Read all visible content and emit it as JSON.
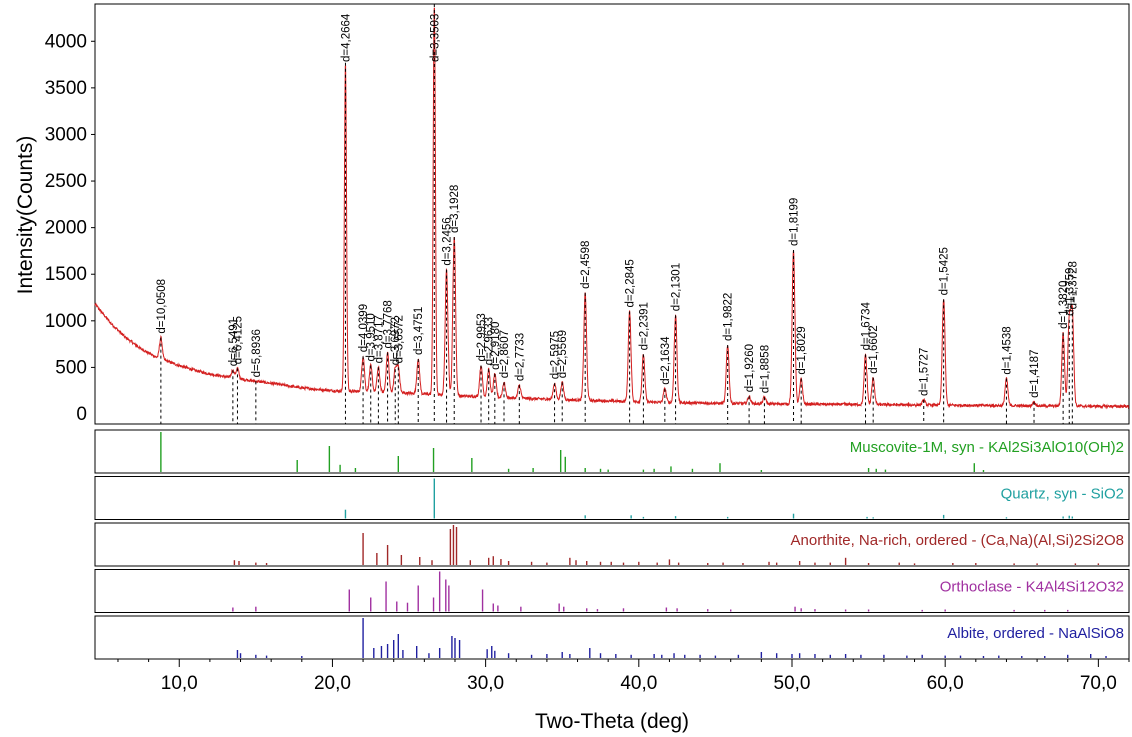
{
  "chart_data": {
    "type": "line",
    "xlabel": "Two-Theta (deg)",
    "ylabel": "Intensity(Counts)",
    "xlim": [
      4.5,
      72
    ],
    "ylim": [
      0,
      4400
    ],
    "x_ticks": [
      10,
      20,
      30,
      40,
      50,
      60,
      70
    ],
    "x_tick_labels": [
      "10,0",
      "20,0",
      "30,0",
      "40,0",
      "50,0",
      "60,0",
      "70,0"
    ],
    "y_ticks": [
      500,
      1000,
      1500,
      2000,
      2500,
      3000,
      3500,
      4000
    ],
    "y_tick_labels": [
      "500",
      "1000",
      "1500",
      "2000",
      "2500",
      "3000",
      "3500",
      "4000"
    ],
    "y_zero_label": "0",
    "pattern_color": "#d42020",
    "baseline": [
      [
        4.5,
        1180
      ],
      [
        5.5,
        980
      ],
      [
        6.5,
        820
      ],
      [
        7.5,
        700
      ],
      [
        8.5,
        610
      ],
      [
        10,
        520
      ],
      [
        11,
        470
      ],
      [
        12,
        430
      ],
      [
        13,
        400
      ],
      [
        14,
        375
      ],
      [
        16,
        330
      ],
      [
        18,
        280
      ],
      [
        20,
        250
      ],
      [
        22,
        240
      ],
      [
        24,
        230
      ],
      [
        26,
        215
      ],
      [
        28,
        195
      ],
      [
        30,
        185
      ],
      [
        32,
        170
      ],
      [
        34,
        160
      ],
      [
        36,
        150
      ],
      [
        38,
        140
      ],
      [
        40,
        130
      ],
      [
        44,
        118
      ],
      [
        48,
        110
      ],
      [
        52,
        105
      ],
      [
        56,
        100
      ],
      [
        60,
        95
      ],
      [
        64,
        90
      ],
      [
        68,
        85
      ],
      [
        72,
        82
      ]
    ],
    "peaks": [
      {
        "x": 8.8,
        "h": 820,
        "d": "d=10,0508"
      },
      {
        "x": 13.5,
        "h": 470,
        "d": "d=6,5491"
      },
      {
        "x": 13.8,
        "h": 490,
        "d": "d=6,4125"
      },
      {
        "x": 15.0,
        "h": 350,
        "d": "d=5,8936"
      },
      {
        "x": 20.85,
        "h": 3770,
        "d": "d=4,2664"
      },
      {
        "x": 22.0,
        "h": 620,
        "d": "d=4,0399"
      },
      {
        "x": 22.5,
        "h": 520,
        "d": "d=3,9510"
      },
      {
        "x": 23.0,
        "h": 500,
        "d": "d=3,8717"
      },
      {
        "x": 23.6,
        "h": 660,
        "d": "d=3,7768"
      },
      {
        "x": 24.1,
        "h": 480,
        "d": "d=3,6972"
      },
      {
        "x": 24.3,
        "h": 500,
        "d": "d=3,6572"
      },
      {
        "x": 25.6,
        "h": 590,
        "d": "d=3,4751"
      },
      {
        "x": 26.65,
        "h": 4400,
        "d": "d=3,3503"
      },
      {
        "x": 27.45,
        "h": 1550,
        "d": "d=3,2456"
      },
      {
        "x": 27.95,
        "h": 1900,
        "d": "d=3,1928"
      },
      {
        "x": 29.7,
        "h": 520,
        "d": "d=2,9953"
      },
      {
        "x": 30.2,
        "h": 480,
        "d": "d=2,9633"
      },
      {
        "x": 30.6,
        "h": 430,
        "d": "d=2,9180"
      },
      {
        "x": 31.2,
        "h": 340,
        "d": "d=2,8607"
      },
      {
        "x": 32.2,
        "h": 310,
        "d": "d=2,7733"
      },
      {
        "x": 34.5,
        "h": 330,
        "d": "d=2,5975"
      },
      {
        "x": 35.0,
        "h": 340,
        "d": "d=2,5569"
      },
      {
        "x": 36.5,
        "h": 1300,
        "d": "d=2,4598"
      },
      {
        "x": 39.4,
        "h": 1100,
        "d": "d=2,2845"
      },
      {
        "x": 40.3,
        "h": 640,
        "d": "d=2,2391"
      },
      {
        "x": 41.7,
        "h": 270,
        "d": "d=2,1634"
      },
      {
        "x": 42.4,
        "h": 1060,
        "d": "d=2,1301"
      },
      {
        "x": 45.8,
        "h": 740,
        "d": "d=1,9822"
      },
      {
        "x": 47.2,
        "h": 190,
        "d": "d=1,9260"
      },
      {
        "x": 48.2,
        "h": 180,
        "d": "d=1,8858"
      },
      {
        "x": 50.1,
        "h": 1760,
        "d": "d=1,8199"
      },
      {
        "x": 50.6,
        "h": 380,
        "d": "d=1,8029"
      },
      {
        "x": 54.8,
        "h": 640,
        "d": "d=1,6734"
      },
      {
        "x": 55.3,
        "h": 390,
        "d": "d=1,6602"
      },
      {
        "x": 58.6,
        "h": 150,
        "d": "d=1,5727"
      },
      {
        "x": 59.9,
        "h": 1230,
        "d": "d=1,5425"
      },
      {
        "x": 64.0,
        "h": 380,
        "d": "d=1,4538"
      },
      {
        "x": 65.8,
        "h": 130,
        "d": "d=1,4187"
      },
      {
        "x": 67.7,
        "h": 870,
        "d": "d=1,3820"
      },
      {
        "x": 68.1,
        "h": 1010,
        "d": "d=1,3759"
      },
      {
        "x": 68.3,
        "h": 1080,
        "d": "d=1,3728"
      }
    ],
    "phases": [
      {
        "name": "Muscovite-1M, syn - KAl2Si3AlO10(OH)2",
        "color": "#22a022",
        "sticks": [
          [
            8.8,
            100
          ],
          [
            17.7,
            30
          ],
          [
            19.8,
            65
          ],
          [
            20.5,
            18
          ],
          [
            21.5,
            10
          ],
          [
            24.3,
            40
          ],
          [
            26.6,
            60
          ],
          [
            29.1,
            35
          ],
          [
            31.5,
            8
          ],
          [
            33.1,
            10
          ],
          [
            34.9,
            55
          ],
          [
            35.2,
            38
          ],
          [
            36.5,
            10
          ],
          [
            37.5,
            8
          ],
          [
            38.0,
            6
          ],
          [
            40.3,
            6
          ],
          [
            41.0,
            8
          ],
          [
            42.1,
            14
          ],
          [
            43.5,
            8
          ],
          [
            45.3,
            22
          ],
          [
            48.0,
            5
          ],
          [
            55.0,
            10
          ],
          [
            55.5,
            8
          ],
          [
            56.1,
            6
          ],
          [
            61.9,
            22
          ],
          [
            62.5,
            5
          ]
        ]
      },
      {
        "name": "Quartz, syn - SiO2",
        "color": "#20a0a0",
        "sticks": [
          [
            20.85,
            22
          ],
          [
            26.65,
            100
          ],
          [
            36.5,
            8
          ],
          [
            39.5,
            8
          ],
          [
            40.3,
            4
          ],
          [
            42.4,
            6
          ],
          [
            45.8,
            4
          ],
          [
            50.1,
            12
          ],
          [
            54.9,
            4
          ],
          [
            55.3,
            3
          ],
          [
            59.9,
            9
          ],
          [
            64.0,
            3
          ],
          [
            67.7,
            5
          ],
          [
            68.1,
            7
          ],
          [
            68.3,
            5
          ]
        ]
      },
      {
        "name": "Anorthite, Na-rich, ordered - (Ca,Na)(Al,Si)2Si2O8",
        "color": "#a02828",
        "sticks": [
          [
            13.6,
            12
          ],
          [
            13.9,
            10
          ],
          [
            15.0,
            6
          ],
          [
            15.7,
            5
          ],
          [
            22.0,
            80
          ],
          [
            22.9,
            30
          ],
          [
            23.6,
            50
          ],
          [
            24.5,
            25
          ],
          [
            25.7,
            20
          ],
          [
            26.5,
            12
          ],
          [
            27.7,
            90
          ],
          [
            27.9,
            100
          ],
          [
            28.1,
            95
          ],
          [
            29.0,
            12
          ],
          [
            30.2,
            18
          ],
          [
            30.5,
            22
          ],
          [
            31.0,
            15
          ],
          [
            31.5,
            10
          ],
          [
            33.0,
            8
          ],
          [
            34.0,
            6
          ],
          [
            35.5,
            18
          ],
          [
            35.9,
            12
          ],
          [
            36.6,
            10
          ],
          [
            37.5,
            8
          ],
          [
            38.2,
            8
          ],
          [
            39.0,
            6
          ],
          [
            40.0,
            8
          ],
          [
            41.2,
            6
          ],
          [
            42.0,
            14
          ],
          [
            42.6,
            6
          ],
          [
            44.5,
            5
          ],
          [
            45.5,
            6
          ],
          [
            46.8,
            5
          ],
          [
            48.5,
            8
          ],
          [
            49.0,
            6
          ],
          [
            50.5,
            10
          ],
          [
            51.5,
            6
          ],
          [
            52.5,
            6
          ],
          [
            53.5,
            18
          ],
          [
            55.0,
            5
          ],
          [
            57.0,
            6
          ],
          [
            58.0,
            4
          ],
          [
            60.5,
            5
          ],
          [
            62.0,
            5
          ],
          [
            64.5,
            4
          ],
          [
            66.0,
            4
          ],
          [
            68.5,
            4
          ],
          [
            70.0,
            4
          ]
        ]
      },
      {
        "name": "Orthoclase - K4Al4Si12O32",
        "color": "#a030a0",
        "sticks": [
          [
            13.5,
            10
          ],
          [
            15.0,
            12
          ],
          [
            21.1,
            55
          ],
          [
            22.5,
            35
          ],
          [
            23.5,
            75
          ],
          [
            24.2,
            25
          ],
          [
            24.9,
            22
          ],
          [
            25.6,
            65
          ],
          [
            26.6,
            35
          ],
          [
            27.0,
            100
          ],
          [
            27.4,
            80
          ],
          [
            27.6,
            65
          ],
          [
            29.8,
            55
          ],
          [
            30.5,
            20
          ],
          [
            30.8,
            15
          ],
          [
            32.3,
            12
          ],
          [
            34.8,
            20
          ],
          [
            35.1,
            12
          ],
          [
            36.6,
            8
          ],
          [
            37.3,
            6
          ],
          [
            39.0,
            8
          ],
          [
            41.8,
            10
          ],
          [
            42.5,
            8
          ],
          [
            44.5,
            6
          ],
          [
            46.0,
            5
          ],
          [
            50.2,
            12
          ],
          [
            50.6,
            8
          ],
          [
            51.5,
            6
          ],
          [
            53.5,
            5
          ],
          [
            55.0,
            5
          ],
          [
            58.5,
            4
          ],
          [
            60.0,
            5
          ],
          [
            64.5,
            4
          ],
          [
            66.5,
            4
          ],
          [
            68.0,
            4
          ]
        ]
      },
      {
        "name": "Albite, ordered - NaAlSiO8",
        "color": "#2020a0",
        "sticks": [
          [
            13.8,
            20
          ],
          [
            14.0,
            12
          ],
          [
            15.0,
            8
          ],
          [
            15.7,
            6
          ],
          [
            18.0,
            5
          ],
          [
            22.0,
            100
          ],
          [
            22.7,
            25
          ],
          [
            23.2,
            30
          ],
          [
            23.6,
            35
          ],
          [
            24.0,
            45
          ],
          [
            24.3,
            60
          ],
          [
            24.6,
            20
          ],
          [
            25.5,
            30
          ],
          [
            26.3,
            12
          ],
          [
            27.0,
            25
          ],
          [
            27.8,
            55
          ],
          [
            28.0,
            50
          ],
          [
            28.3,
            45
          ],
          [
            30.1,
            22
          ],
          [
            30.4,
            30
          ],
          [
            30.6,
            18
          ],
          [
            31.5,
            12
          ],
          [
            33.0,
            8
          ],
          [
            34.0,
            10
          ],
          [
            35.0,
            15
          ],
          [
            35.5,
            10
          ],
          [
            36.8,
            25
          ],
          [
            37.5,
            12
          ],
          [
            38.5,
            10
          ],
          [
            39.5,
            8
          ],
          [
            41.0,
            10
          ],
          [
            41.5,
            8
          ],
          [
            42.3,
            12
          ],
          [
            43.0,
            8
          ],
          [
            44.0,
            8
          ],
          [
            45.0,
            6
          ],
          [
            46.5,
            8
          ],
          [
            48.0,
            15
          ],
          [
            49.0,
            12
          ],
          [
            50.0,
            10
          ],
          [
            50.5,
            12
          ],
          [
            51.5,
            10
          ],
          [
            52.5,
            8
          ],
          [
            53.5,
            10
          ],
          [
            54.5,
            8
          ],
          [
            56.0,
            8
          ],
          [
            57.5,
            6
          ],
          [
            58.5,
            8
          ],
          [
            60.0,
            6
          ],
          [
            61.0,
            6
          ],
          [
            62.5,
            5
          ],
          [
            63.5,
            6
          ],
          [
            65.0,
            5
          ],
          [
            66.5,
            5
          ],
          [
            68.0,
            8
          ],
          [
            69.5,
            10
          ],
          [
            70.5,
            5
          ]
        ]
      }
    ]
  }
}
